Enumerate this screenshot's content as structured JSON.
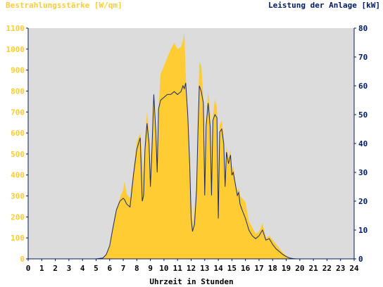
{
  "chart_data": {
    "type": "area",
    "ylabel_left": "Bestrahlungsstärke [W/qm]",
    "ylabel_right": "Leistung der Anlage [kW]",
    "xlabel": "Uhrzeit in Stunden",
    "xlim": [
      0,
      24
    ],
    "ylim_left": [
      0,
      1100
    ],
    "ylim_right": [
      0,
      80
    ],
    "x_ticks": [
      "0",
      "1",
      "2",
      "3",
      "4",
      "5",
      "6",
      "7",
      "8",
      "9",
      "10",
      "11",
      "12",
      "13",
      "14",
      "15",
      "16",
      "17",
      "18",
      "19",
      "20",
      "21",
      "22",
      "23",
      "24"
    ],
    "y_ticks_left": [
      "0",
      "100",
      "200",
      "300",
      "400",
      "500",
      "600",
      "700",
      "800",
      "900",
      "1000",
      "1100"
    ],
    "y_ticks_right": [
      "0",
      "10",
      "20",
      "30",
      "40",
      "50",
      "60",
      "70",
      "80"
    ],
    "colors": {
      "irradiance": "#ffcc33",
      "power": "#1a2a6c",
      "plot_bg": "#dcdcdc",
      "axis": "#001a66"
    },
    "series": [
      {
        "name": "Bestrahlungsstärke",
        "unit": "W/qm",
        "axis": "left",
        "x": [
          0,
          5.0,
          5.5,
          5.75,
          6.0,
          6.25,
          6.5,
          6.75,
          7.0,
          7.1,
          7.25,
          7.5,
          7.75,
          8.0,
          8.25,
          8.4,
          8.5,
          8.6,
          8.75,
          8.9,
          9.0,
          9.1,
          9.25,
          9.4,
          9.5,
          9.6,
          9.75,
          10.0,
          10.25,
          10.5,
          10.75,
          11.0,
          11.25,
          11.4,
          11.5,
          11.6,
          11.75,
          11.9,
          12.0,
          12.1,
          12.25,
          12.4,
          12.5,
          12.6,
          12.75,
          12.9,
          13.0,
          13.1,
          13.25,
          13.4,
          13.5,
          13.6,
          13.75,
          13.9,
          14.0,
          14.1,
          14.25,
          14.4,
          14.5,
          14.6,
          14.75,
          14.9,
          15.0,
          15.1,
          15.25,
          15.4,
          15.5,
          15.6,
          15.75,
          16.0,
          16.25,
          16.5,
          16.75,
          17.0,
          17.25,
          17.4,
          17.5,
          17.75,
          18.0,
          18.25,
          18.5,
          18.75,
          19.0,
          19.25,
          19.5,
          19.75,
          20.0,
          24
        ],
        "y": [
          0,
          0,
          5,
          20,
          60,
          150,
          230,
          290,
          330,
          370,
          310,
          290,
          420,
          560,
          600,
          480,
          400,
          560,
          700,
          600,
          420,
          560,
          780,
          620,
          500,
          720,
          880,
          920,
          960,
          1000,
          1030,
          1000,
          1010,
          1040,
          1080,
          880,
          700,
          420,
          300,
          160,
          230,
          380,
          640,
          940,
          920,
          760,
          380,
          650,
          800,
          700,
          420,
          680,
          760,
          720,
          300,
          640,
          660,
          580,
          360,
          540,
          480,
          520,
          420,
          450,
          370,
          320,
          340,
          300,
          290,
          270,
          180,
          150,
          120,
          130,
          170,
          130,
          100,
          110,
          90,
          70,
          50,
          30,
          15,
          5,
          2,
          0,
          0,
          0
        ]
      },
      {
        "name": "Leistung der Anlage",
        "unit": "kW",
        "axis": "right",
        "x": [
          0,
          5.0,
          5.5,
          5.75,
          6.0,
          6.25,
          6.5,
          6.75,
          7.0,
          7.1,
          7.25,
          7.5,
          7.75,
          8.0,
          8.25,
          8.4,
          8.5,
          8.6,
          8.75,
          8.9,
          9.0,
          9.1,
          9.25,
          9.4,
          9.5,
          9.6,
          9.75,
          10.0,
          10.25,
          10.5,
          10.75,
          11.0,
          11.25,
          11.4,
          11.5,
          11.6,
          11.75,
          11.9,
          12.0,
          12.1,
          12.25,
          12.4,
          12.5,
          12.6,
          12.75,
          12.9,
          13.0,
          13.1,
          13.25,
          13.4,
          13.5,
          13.6,
          13.75,
          13.9,
          14.0,
          14.1,
          14.25,
          14.4,
          14.5,
          14.6,
          14.75,
          14.9,
          15.0,
          15.1,
          15.25,
          15.4,
          15.5,
          15.6,
          15.75,
          16.0,
          16.25,
          16.5,
          16.75,
          17.0,
          17.25,
          17.4,
          17.5,
          17.75,
          18.0,
          18.25,
          18.5,
          18.75,
          19.0,
          19.25,
          19.5,
          19.75,
          20.0,
          24
        ],
        "y": [
          0,
          0,
          0.3,
          1.5,
          4.5,
          11,
          17,
          20,
          21,
          20.5,
          19,
          18,
          29,
          38,
          42,
          20,
          22,
          38,
          47,
          40,
          25,
          36,
          57,
          44,
          30,
          52,
          55,
          56,
          57,
          57,
          58,
          57,
          58,
          60,
          59,
          61,
          50,
          32,
          14,
          9.5,
          12,
          24,
          44,
          60,
          58,
          54,
          22,
          46,
          54,
          46,
          22,
          48,
          50,
          49,
          14,
          44,
          45,
          40,
          25,
          37,
          33,
          36,
          29,
          30,
          26,
          22,
          23,
          19,
          17,
          14,
          10,
          8,
          7,
          8,
          10,
          8,
          6.5,
          7,
          5,
          3.5,
          2.5,
          1.5,
          0.8,
          0.3,
          0.1,
          0,
          0,
          0
        ]
      }
    ]
  }
}
